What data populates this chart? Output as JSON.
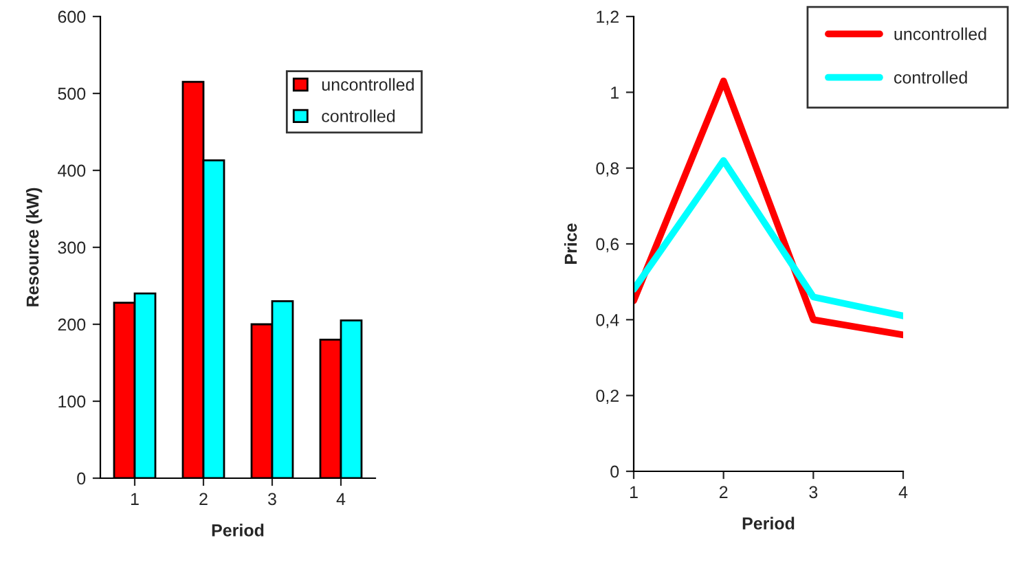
{
  "chart_data": [
    {
      "type": "bar",
      "xlabel": "Period",
      "ylabel": "Resource (kW)",
      "categories": [
        "1",
        "2",
        "3",
        "4"
      ],
      "series": [
        {
          "name": "uncontrolled",
          "color": "#ff0000",
          "values": [
            228,
            515,
            200,
            180
          ]
        },
        {
          "name": "controlled",
          "color": "#00ffff",
          "values": [
            240,
            413,
            230,
            205
          ]
        }
      ],
      "ylim": [
        0,
        600
      ],
      "yticks": [
        0,
        100,
        200,
        300,
        400,
        500,
        600
      ],
      "grid": false,
      "legend": "top right"
    },
    {
      "type": "line",
      "xlabel": "Period",
      "ylabel": "Price",
      "x": [
        1,
        2,
        3,
        4
      ],
      "series": [
        {
          "name": "uncontrolled",
          "color": "#ff0000",
          "values": [
            0.45,
            1.03,
            0.4,
            0.36
          ]
        },
        {
          "name": "controlled",
          "color": "#00ffff",
          "values": [
            0.48,
            0.82,
            0.46,
            0.41
          ]
        }
      ],
      "xlim": [
        1,
        4
      ],
      "xticks": [
        1,
        2,
        3,
        4
      ],
      "ylim": [
        0,
        1.2
      ],
      "yticks": [
        {
          "value": 0,
          "label": "0"
        },
        {
          "value": 0.2,
          "label": "0,2"
        },
        {
          "value": 0.4,
          "label": "0,4"
        },
        {
          "value": 0.6,
          "label": "0,6"
        },
        {
          "value": 0.8,
          "label": "0,8"
        },
        {
          "value": 1,
          "label": "1"
        },
        {
          "value": 1.2,
          "label": "1,2"
        }
      ],
      "grid": false,
      "legend": "top right",
      "marker": "none",
      "line_style": "solid"
    }
  ]
}
